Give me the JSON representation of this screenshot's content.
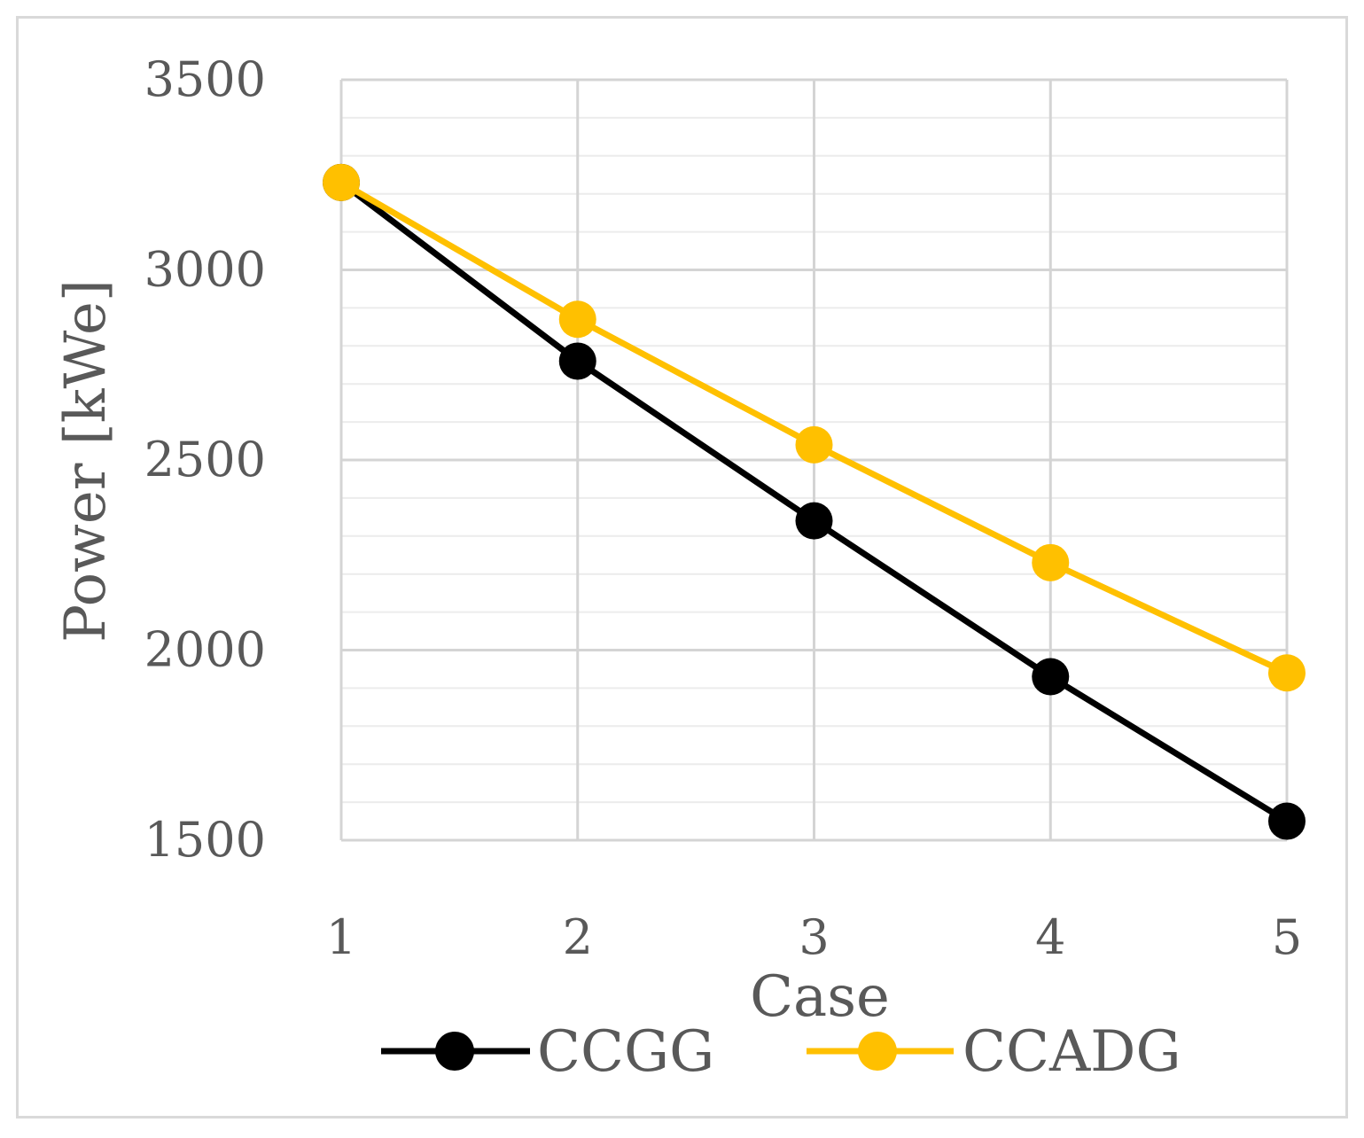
{
  "chart_data": {
    "type": "line",
    "title": "",
    "xlabel": "Case",
    "ylabel": "Power [kWe]",
    "categories": [
      "1",
      "2",
      "3",
      "4",
      "5"
    ],
    "ylim": [
      1500,
      3500
    ],
    "yticks": [
      "1500",
      "2000",
      "2500",
      "3000",
      "3500"
    ],
    "grid": true,
    "legend_position": "bottom",
    "series": [
      {
        "name": "CCGG",
        "color": "#000000",
        "values": [
          3230,
          2760,
          2340,
          1930,
          1550
        ]
      },
      {
        "name": "CCADG",
        "color": "#ffc000",
        "values": [
          3230,
          2870,
          2540,
          2230,
          1940
        ]
      }
    ]
  }
}
